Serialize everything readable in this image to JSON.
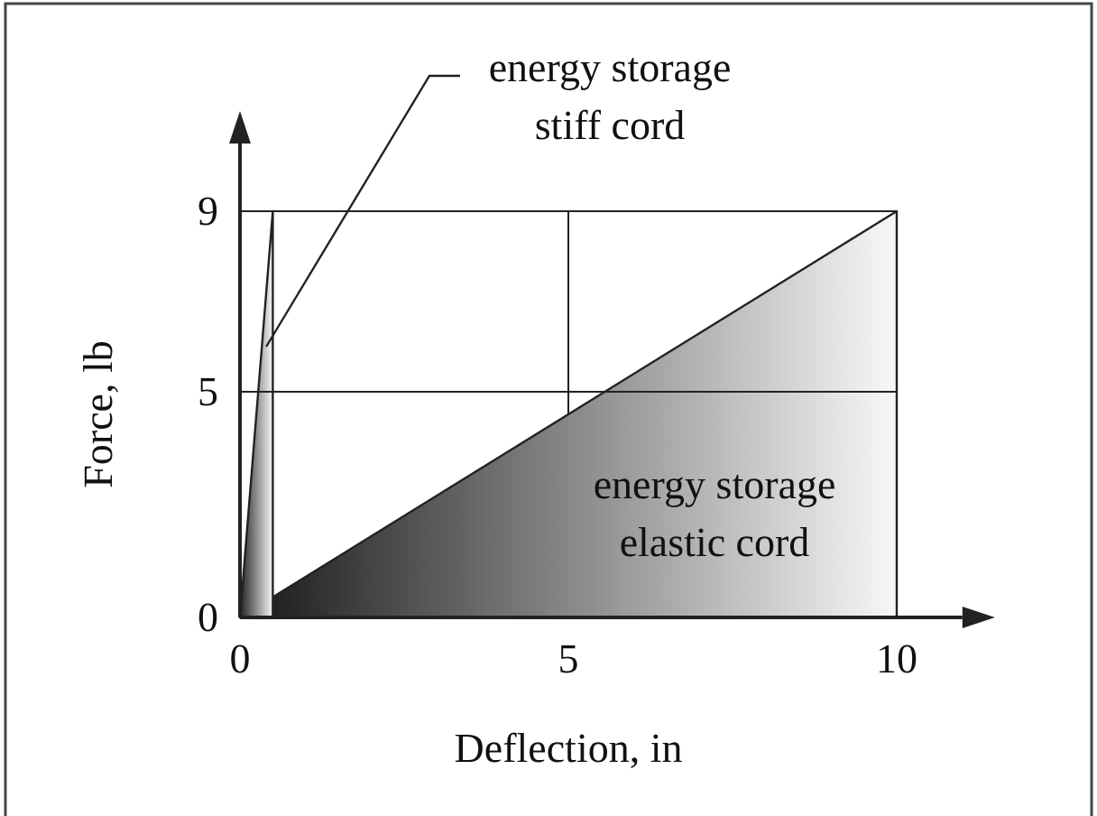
{
  "chart_data": {
    "type": "area",
    "xlabel": "Deflection, in",
    "ylabel": "Force, lb",
    "xlim": [
      0,
      11
    ],
    "ylim": [
      0,
      10.5
    ],
    "xticks": [
      0,
      5,
      10
    ],
    "yticks": [
      0,
      9,
      5
    ],
    "grid": true,
    "series": [
      {
        "color": "#222222",
        "x": [
          0.5,
          10
        ],
        "values": [
          0.45,
          9
        ]
      },
      {
        "color": "#222222",
        "x": [
          0,
          0.5
        ],
        "values": [
          0,
          9
        ]
      }
    ],
    "annotations": [
      {
        "text": "energy storage\nstiff cord",
        "x": 0.4,
        "y": 6
      },
      "energy storage\nelastic cord"
    ]
  }
}
